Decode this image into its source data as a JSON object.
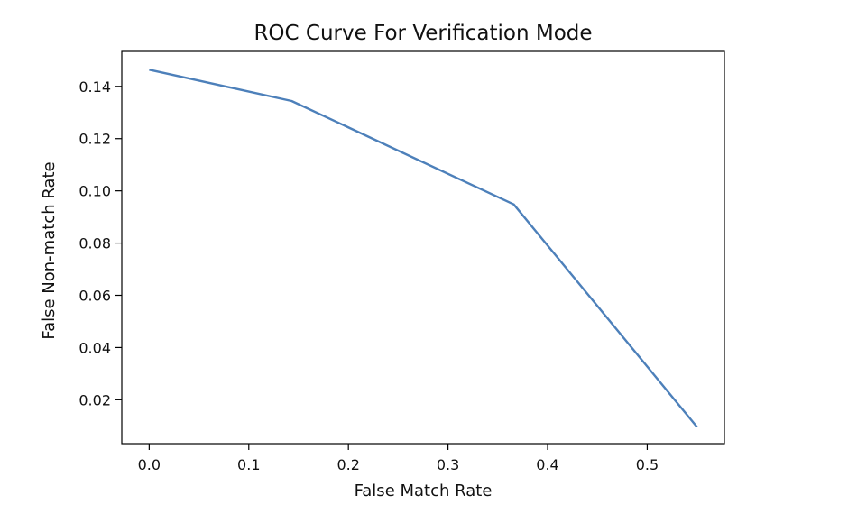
{
  "chart_data": {
    "type": "line",
    "title": "ROC Curve For Verification Mode",
    "xlabel": "False Match Rate",
    "ylabel": "False Non-match Rate",
    "xlim": [
      -0.0275,
      0.5775
    ],
    "ylim": [
      0.0032,
      0.1534
    ],
    "x_ticks": [
      0.0,
      0.1,
      0.2,
      0.3,
      0.4,
      0.5
    ],
    "x_tick_labels": [
      "0.0",
      "0.1",
      "0.2",
      "0.3",
      "0.4",
      "0.5"
    ],
    "y_ticks": [
      0.02,
      0.04,
      0.06,
      0.08,
      0.1,
      0.12,
      0.14
    ],
    "y_tick_labels": [
      "0.02",
      "0.04",
      "0.06",
      "0.08",
      "0.10",
      "0.12",
      "0.14"
    ],
    "grid": false,
    "series": [
      {
        "color": "#4d80ba",
        "x": [
          0.0,
          0.143,
          0.366,
          0.55
        ],
        "y": [
          0.1464,
          0.1344,
          0.0948,
          0.0096
        ]
      }
    ]
  }
}
